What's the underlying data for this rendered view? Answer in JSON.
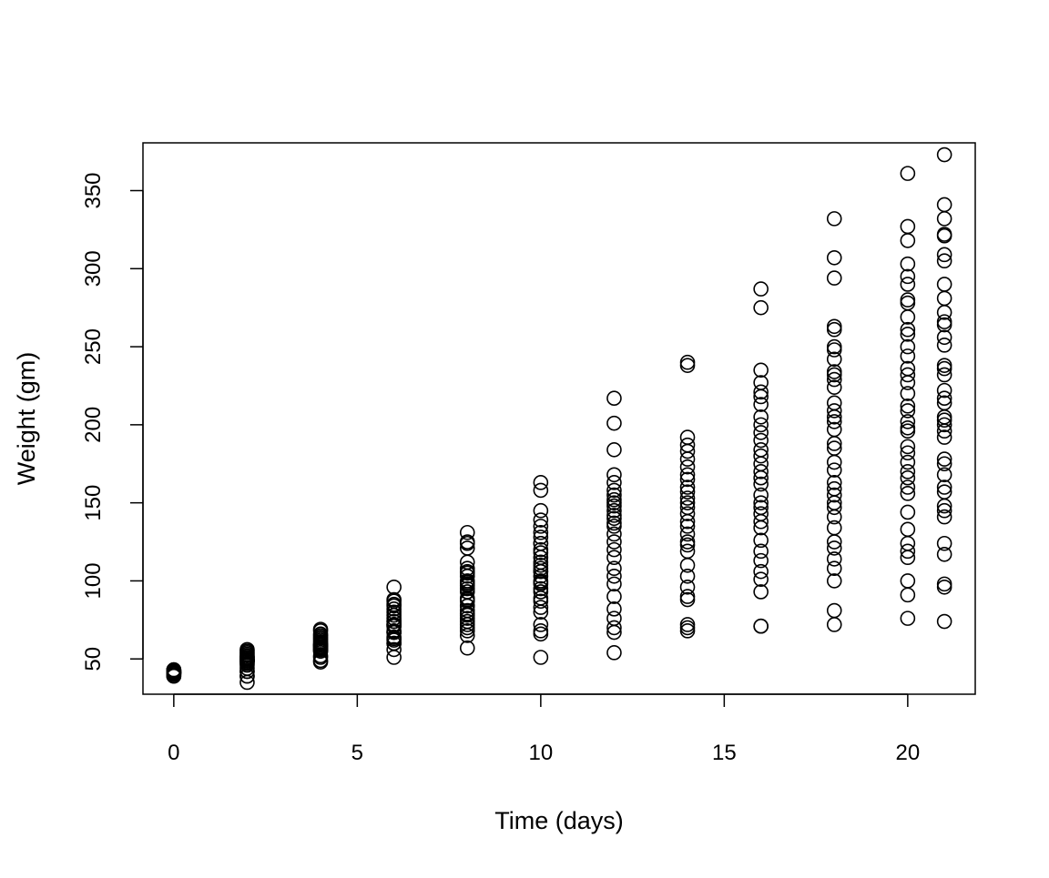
{
  "chart_data": {
    "type": "scatter",
    "title": "",
    "xlabel": "Time (days)",
    "ylabel": "Weight (gm)",
    "xlim": [
      -0.84,
      21.84
    ],
    "ylim": [
      27.4,
      380.6
    ],
    "xticks": [
      0,
      5,
      10,
      15,
      20
    ],
    "yticks": [
      50,
      100,
      150,
      200,
      250,
      300,
      350
    ],
    "grid": false,
    "marker": "open-circle",
    "series": [
      {
        "x": 0,
        "y": [
          42,
          40,
          43,
          42,
          41,
          41,
          41,
          42,
          42,
          41,
          43,
          41,
          41,
          41,
          41,
          39,
          41,
          42,
          39,
          40,
          41,
          43,
          42,
          40
        ]
      },
      {
        "x": 2,
        "y": [
          51,
          49,
          39,
          49,
          42,
          49,
          49,
          50,
          51,
          44,
          51,
          49,
          49,
          48,
          49,
          39,
          42,
          50,
          35,
          48,
          52,
          53,
          55,
          56,
          54,
          47,
          46
        ]
      },
      {
        "x": 4,
        "y": [
          59,
          58,
          55,
          56,
          48,
          59,
          57,
          58,
          59,
          52,
          63,
          56,
          62,
          57,
          51,
          55,
          49,
          61,
          64,
          65,
          66,
          68,
          69,
          60
        ]
      },
      {
        "x": 6,
        "y": [
          64,
          72,
          67,
          67,
          60,
          74,
          71,
          72,
          74,
          63,
          84,
          62,
          76,
          67,
          60,
          71,
          56,
          72,
          51,
          80,
          82,
          85,
          87,
          88,
          96,
          78,
          68
        ]
      },
      {
        "x": 8,
        "y": [
          76,
          84,
          84,
          74,
          79,
          97,
          89,
          88,
          87,
          81,
          103,
          105,
          98,
          99,
          72,
          78,
          68,
          93,
          57,
          106,
          108,
          112,
          121,
          124,
          131,
          125,
          65,
          70,
          95,
          100
        ]
      },
      {
        "x": 10,
        "y": [
          93,
          103,
          99,
          87,
          106,
          124,
          112,
          106,
          100,
          145,
          163,
          158,
          139,
          131,
          124,
          118,
          115,
          110,
          95,
          89,
          83,
          80,
          72,
          68,
          66,
          51,
          108,
          120,
          128,
          135,
          98
        ]
      },
      {
        "x": 12,
        "y": [
          217,
          201,
          184,
          168,
          163,
          158,
          155,
          150,
          145,
          140,
          135,
          130,
          125,
          120,
          115,
          108,
          103,
          98,
          90,
          82,
          76,
          70,
          67,
          54,
          148,
          142,
          137,
          152
        ]
      },
      {
        "x": 14,
        "y": [
          240,
          238,
          192,
          187,
          183,
          178,
          173,
          168,
          165,
          160,
          157,
          153,
          150,
          147,
          143,
          138,
          135,
          130,
          125,
          123,
          119,
          110,
          103,
          96,
          90,
          88,
          72,
          70,
          68
        ]
      },
      {
        "x": 16,
        "y": [
          287,
          275,
          235,
          227,
          221,
          218,
          213,
          205,
          200,
          195,
          190,
          184,
          180,
          175,
          170,
          166,
          162,
          155,
          150,
          147,
          143,
          138,
          134,
          126,
          119,
          113,
          106,
          101,
          93,
          71,
          71
        ]
      },
      {
        "x": 18,
        "y": [
          332,
          307,
          294,
          263,
          261,
          250,
          248,
          242,
          234,
          232,
          229,
          224,
          214,
          209,
          205,
          202,
          197,
          188,
          185,
          176,
          171,
          163,
          159,
          155,
          150,
          147,
          141,
          134,
          125,
          121,
          114,
          108,
          100,
          81,
          72
        ]
      },
      {
        "x": 20,
        "y": [
          361,
          327,
          318,
          303,
          295,
          290,
          280,
          278,
          269,
          261,
          258,
          250,
          244,
          236,
          232,
          227,
          220,
          212,
          209,
          202,
          198,
          196,
          186,
          182,
          176,
          170,
          166,
          160,
          156,
          144,
          133,
          124,
          119,
          115,
          100,
          91,
          76
        ]
      },
      {
        "x": 21,
        "y": [
          373,
          341,
          332,
          322,
          321,
          309,
          305,
          290,
          281,
          272,
          266,
          264,
          256,
          251,
          238,
          236,
          232,
          222,
          217,
          214,
          205,
          203,
          200,
          196,
          192,
          178,
          175,
          168,
          160,
          157,
          148,
          145,
          141,
          124,
          117,
          98,
          96,
          74
        ]
      }
    ]
  }
}
